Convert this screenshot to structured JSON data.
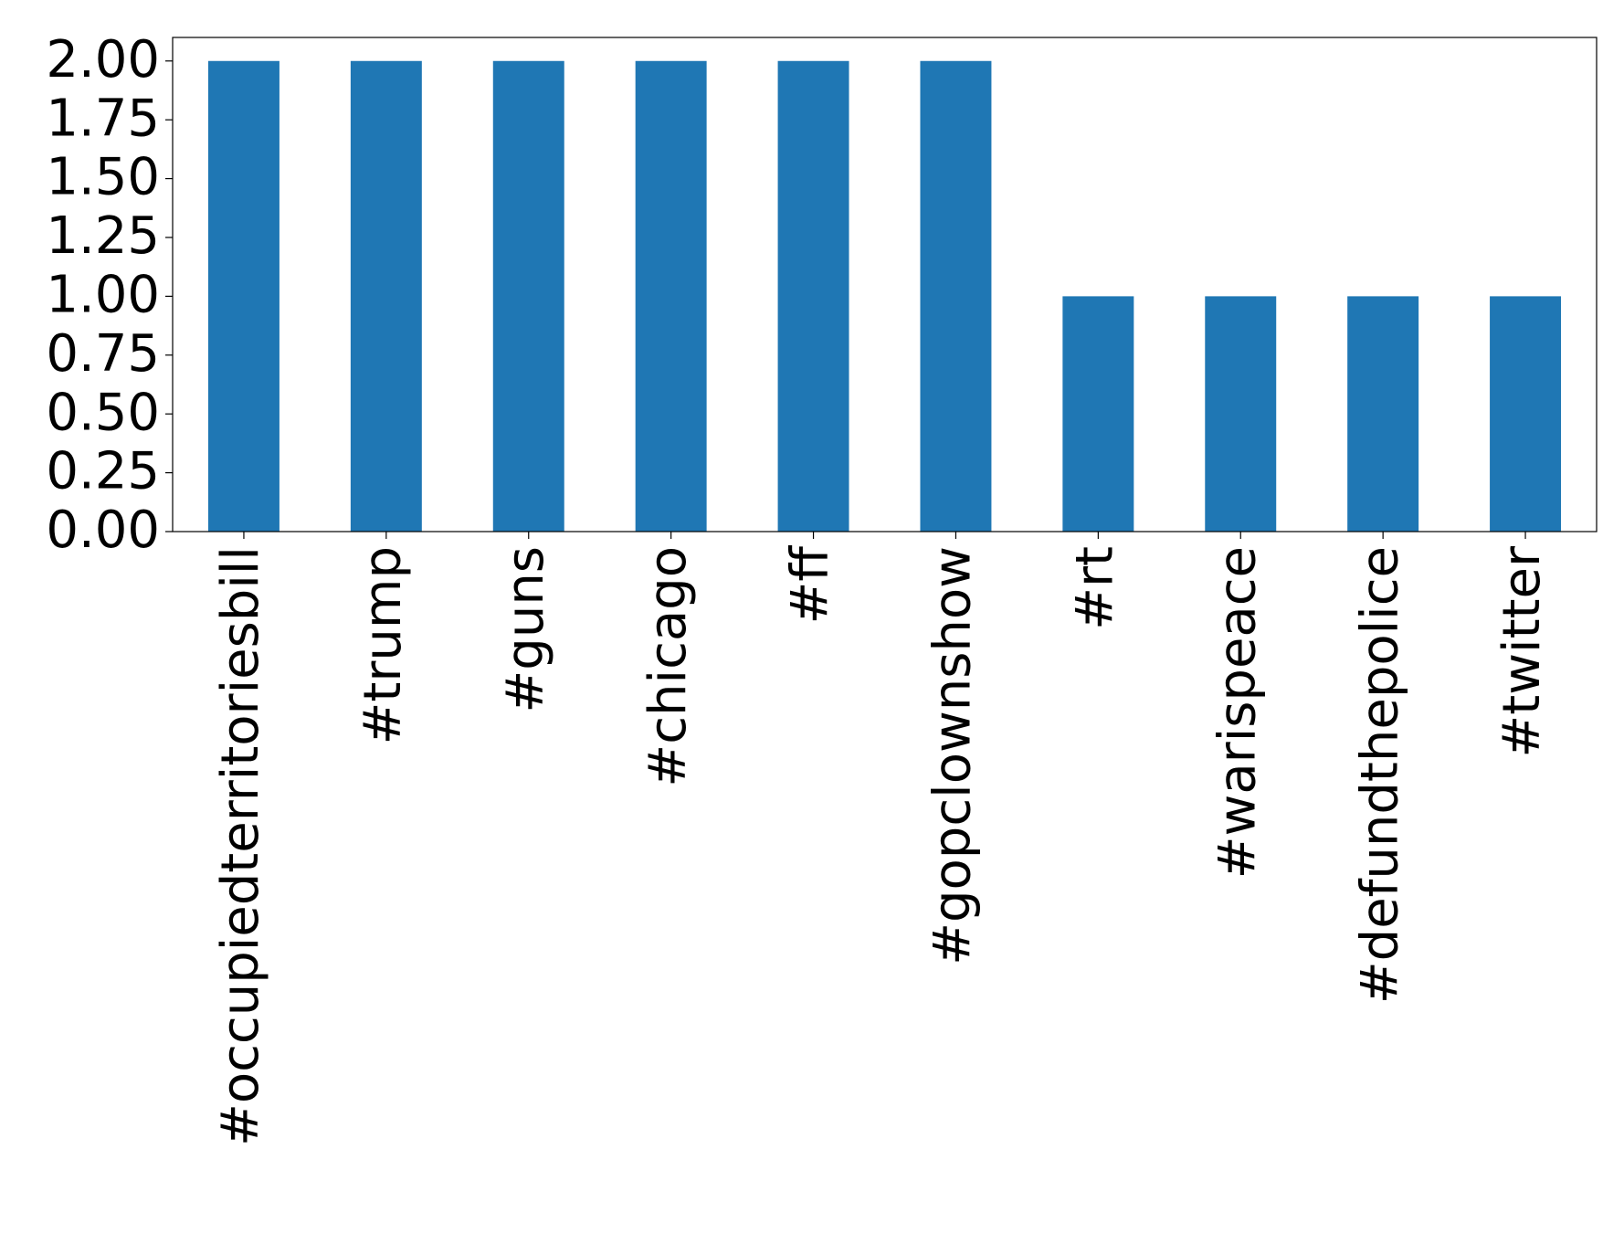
{
  "chart_data": {
    "type": "bar",
    "categories": [
      "#occupiedterritoriesbill",
      "#trump",
      "#guns",
      "#chicago",
      "#ff",
      "#gopclownshow",
      "#rt",
      "#warispeace",
      "#defundthepolice",
      "#twitter"
    ],
    "values": [
      2,
      2,
      2,
      2,
      2,
      2,
      1,
      1,
      1,
      1
    ],
    "color": "#1f77b4",
    "ylim": [
      0,
      2.1
    ],
    "yticks": [
      {
        "value": 0,
        "label": "0.00"
      },
      {
        "value": 0.25,
        "label": "0.25"
      },
      {
        "value": 0.5,
        "label": "0.50"
      },
      {
        "value": 0.75,
        "label": "0.75"
      },
      {
        "value": 1,
        "label": "1.00"
      },
      {
        "value": 1.25,
        "label": "1.25"
      },
      {
        "value": 1.5,
        "label": "1.50"
      },
      {
        "value": 1.75,
        "label": "1.75"
      },
      {
        "value": 2,
        "label": "2.00"
      }
    ],
    "grid": false
  }
}
